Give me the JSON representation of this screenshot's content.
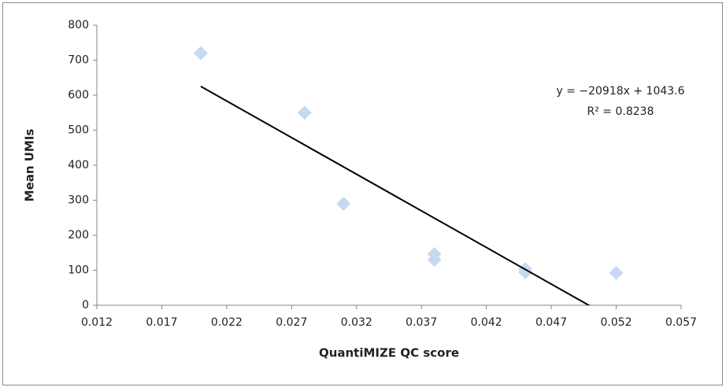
{
  "chart_data": {
    "type": "scatter",
    "x_label": "QuantiMIZE QC score",
    "y_label": "Mean UMIs",
    "series": [
      {
        "color": "#c6d9f1",
        "x": [
          0.02,
          0.028,
          0.031,
          0.038,
          0.038,
          0.045,
          0.045,
          0.052
        ],
        "values": [
          720,
          550,
          290,
          146,
          130,
          103,
          94,
          92
        ]
      }
    ],
    "trendline": {
      "slope": -20918,
      "intercept": 1043.6,
      "color": "#000000",
      "equation": "y = −20918x + 1043.6",
      "r2": 0.8238,
      "r2_label": "R² = 0.8238"
    },
    "xlim": [
      0.012,
      0.057
    ],
    "xticks": [
      0.012,
      0.017,
      0.022,
      0.027,
      0.032,
      0.037,
      0.042,
      0.047,
      0.052,
      0.057
    ],
    "ylim": [
      0,
      800
    ],
    "yticks": [
      0,
      100,
      200,
      300,
      400,
      500,
      600,
      700,
      800
    ]
  }
}
